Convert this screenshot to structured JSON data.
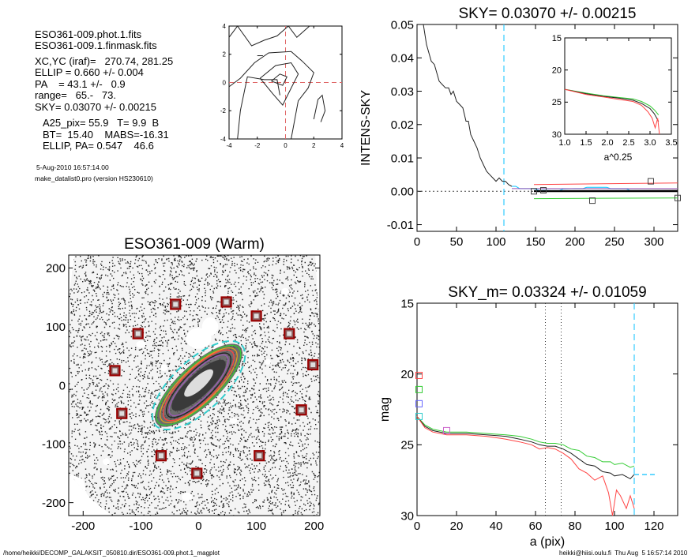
{
  "info": {
    "file1": "ESO361-009.phot.1.fits",
    "file2": "ESO361-009.1.finmask.fits",
    "xcyc": "XC,YC (iraf)=   270.74, 281.25",
    "ellip": "ELLIP = 0.660 +/- 0.004",
    "pa": "PA    = 43.1 +/-   0.9",
    "range": "range=   65.-   73.",
    "sky": "SKY= 0.03070 +/- 0.00215",
    "a25": "A25_pix= 55.9   T= 9.9  B",
    "bt": "BT=  15.40    MABS=-16.31",
    "ellip_pa": "ELLIP, PA= 0.547    46.6",
    "date": "5-Aug-2010 16:57:14.00",
    "program": "make_datalist0.pro (version HS230610)"
  },
  "footer": {
    "left": "/home/heikki/DECOMP_GALAKSIT_050810.dir/ESO361-009.phot.1_magplot",
    "right": "heikki@hiisi.oulu.fi  Thu Aug  5 16:57:14 2010"
  },
  "chart_data": [
    {
      "type": "contour",
      "id": "center-contour",
      "xlim": [
        -4,
        4
      ],
      "ylim": [
        -4,
        4
      ],
      "xticks": [
        "-4",
        "-2",
        "0",
        "2",
        "4"
      ],
      "yticks": [
        "-4",
        "-2",
        "0",
        "2",
        "4"
      ],
      "crosshair": [
        0,
        0
      ],
      "colors": {
        "lines": "#222222",
        "crosshair": "#e06666"
      }
    },
    {
      "type": "line",
      "id": "sky-profile",
      "title": "SKY= 0.03070 +/- 0.00215",
      "ylabel": "INTENS-SKY",
      "xlim": [
        0,
        330
      ],
      "ylim": [
        -0.012,
        0.05
      ],
      "xticks": [
        0,
        50,
        100,
        150,
        200,
        250,
        300
      ],
      "yticks": [
        -0.01,
        0.0,
        0.01,
        0.02,
        0.03,
        0.04,
        0.05
      ],
      "ytick_labels": [
        "-0.01",
        "0.00",
        "0.01",
        "0.02",
        "0.03",
        "0.04",
        "0.05"
      ],
      "dashed_x": 110,
      "series": [
        {
          "values": [
            [
              8,
              0.05
            ],
            [
              12,
              0.044
            ],
            [
              18,
              0.039
            ],
            [
              22,
              0.038
            ],
            [
              28,
              0.033
            ],
            [
              32,
              0.032
            ],
            [
              36,
              0.031
            ],
            [
              40,
              0.031
            ],
            [
              43,
              0.029
            ],
            [
              46,
              0.03
            ],
            [
              50,
              0.027
            ],
            [
              54,
              0.026
            ],
            [
              58,
              0.025
            ],
            [
              62,
              0.021
            ],
            [
              65,
              0.021
            ],
            [
              68,
              0.017
            ],
            [
              72,
              0.015
            ],
            [
              76,
              0.013
            ],
            [
              80,
              0.01
            ],
            [
              84,
              0.008
            ],
            [
              88,
              0.006
            ],
            [
              92,
              0.005
            ],
            [
              96,
              0.004
            ],
            [
              100,
              0.003
            ],
            [
              104,
              0.004
            ],
            [
              108,
              0.003
            ],
            [
              112,
              0.003
            ],
            [
              116,
              0.002
            ],
            [
              120,
              0.0015
            ]
          ],
          "color": "#222222"
        },
        {
          "values": [
            [
              120,
              0.0015
            ],
            [
              125,
              0.0015
            ],
            [
              130,
              0.0008
            ],
            [
              140,
              0.0008
            ],
            [
              148,
              0.0008
            ],
            [
              155,
              0.0002
            ],
            [
              160,
              0.0003
            ],
            [
              170,
              0.0002
            ],
            [
              180,
              0.0002
            ],
            [
              185,
              0.0007
            ],
            [
              200,
              0.0008
            ],
            [
              210,
              0.0008
            ],
            [
              215,
              0.0012
            ],
            [
              240,
              0.0012
            ],
            [
              245,
              0.0008
            ],
            [
              265,
              0.0008
            ],
            [
              270,
              0.0002
            ],
            [
              330,
              0.0002
            ]
          ],
          "color": "#00bfff"
        },
        {
          "values": [
            [
              120,
              0.0008
            ],
            [
              330,
              0.0008
            ]
          ],
          "color": "#9b59b6"
        },
        {
          "values": [
            [
              148,
              0.0002
            ],
            [
              330,
              0.0003
            ]
          ],
          "color": "#222222"
        },
        {
          "values": [
            [
              148,
              0.0
            ],
            [
              330,
              0.0
            ]
          ],
          "color": "#000000"
        },
        {
          "values": [
            [
              148,
              0.002
            ],
            [
              330,
              0.0025
            ]
          ],
          "color": "#ff4444"
        },
        {
          "values": [
            [
              148,
              -0.0022
            ],
            [
              330,
              -0.002
            ]
          ],
          "color": "#33cc33"
        }
      ],
      "markers": [
        [
          148,
          0.0
        ],
        [
          160,
          0.0003
        ],
        [
          222,
          -0.0028
        ],
        [
          296,
          0.003
        ],
        [
          330,
          -0.002
        ]
      ],
      "zero_line": 0.0
    },
    {
      "type": "line",
      "id": "sky-inset",
      "xlabel": "a^0.25",
      "xlim": [
        1.0,
        3.5
      ],
      "ylim": [
        30,
        15
      ],
      "xticks": [
        1.0,
        1.5,
        2.0,
        2.5,
        3.0,
        3.5
      ],
      "xtick_labels": [
        "1.0",
        "1.5",
        "2.0",
        "2.5",
        "3.0",
        "3.5"
      ],
      "yticks": [
        15,
        20,
        25,
        30
      ],
      "series": [
        {
          "values": [
            [
              1.0,
              23.0
            ],
            [
              1.5,
              23.6
            ],
            [
              1.9,
              24.0
            ],
            [
              2.3,
              24.3
            ],
            [
              2.6,
              24.5
            ],
            [
              2.8,
              24.9
            ],
            [
              3.0,
              25.6
            ],
            [
              3.1,
              26.2
            ],
            [
              3.2,
              27.0
            ]
          ],
          "color": "#33cc33"
        },
        {
          "values": [
            [
              1.0,
              23.0
            ],
            [
              1.5,
              23.7
            ],
            [
              1.9,
              24.1
            ],
            [
              2.3,
              24.4
            ],
            [
              2.6,
              24.7
            ],
            [
              2.8,
              25.2
            ],
            [
              3.0,
              26.0
            ],
            [
              3.1,
              26.8
            ],
            [
              3.2,
              28.0
            ]
          ],
          "color": "#222222"
        },
        {
          "values": [
            [
              1.0,
              23.0
            ],
            [
              1.5,
              23.8
            ],
            [
              1.9,
              24.2
            ],
            [
              2.3,
              24.6
            ],
            [
              2.6,
              24.9
            ],
            [
              2.8,
              25.5
            ],
            [
              2.95,
              26.5
            ],
            [
              3.05,
              27.5
            ],
            [
              3.12,
              29.0
            ],
            [
              3.18,
              27.5
            ],
            [
              3.22,
              30.0
            ]
          ],
          "color": "#ff4444"
        }
      ]
    },
    {
      "type": "scatter",
      "id": "galaxy-image",
      "title": "ESO361-009 (Warm)",
      "xlim": [
        -225,
        210
      ],
      "ylim": [
        -222,
        222
      ],
      "xticks": [
        -200,
        -100,
        0,
        100,
        200
      ],
      "yticks": [
        -200,
        -100,
        0,
        100,
        200
      ],
      "sky_boxes": [
        [
          -40,
          138
        ],
        [
          48,
          142
        ],
        [
          100,
          118
        ],
        [
          -105,
          88
        ],
        [
          157,
          88
        ],
        [
          -145,
          25
        ],
        [
          198,
          35
        ],
        [
          -133,
          -48
        ],
        [
          178,
          -42
        ],
        [
          -65,
          -120
        ],
        [
          105,
          -120
        ],
        [
          -3,
          -150
        ]
      ],
      "ellipses": [
        {
          "rx": 95,
          "ry": 33,
          "angle": -43,
          "color": "#33cc33"
        },
        {
          "rx": 88,
          "ry": 30,
          "angle": -44,
          "color": "#e0a020"
        },
        {
          "rx": 82,
          "ry": 28,
          "angle": -45,
          "color": "#ff4444"
        },
        {
          "rx": 75,
          "ry": 25,
          "angle": -45,
          "color": "#222222"
        },
        {
          "rx": 70,
          "ry": 22,
          "angle": -46,
          "color": "#9b59b6"
        }
      ],
      "sky_ellipse": {
        "rx": 102,
        "ry": 44,
        "angle": -43,
        "color": "#33cccc"
      },
      "colors": {
        "box_outline": "#990000"
      }
    },
    {
      "type": "line",
      "id": "mag-profile",
      "title": "SKY_m=  0.03324 +/- 0.01059",
      "xlabel": "a (pix)",
      "ylabel": "mag",
      "xlim": [
        0,
        132
      ],
      "ylim": [
        30,
        15
      ],
      "xticks": [
        0,
        20,
        40,
        60,
        80,
        100,
        120
      ],
      "yticks": [
        15,
        20,
        25,
        30
      ],
      "dotted_x": [
        65,
        73
      ],
      "dashed_x": 110,
      "series": [
        {
          "values": [
            [
              0,
              23.0
            ],
            [
              4,
              23.6
            ],
            [
              8,
              23.9
            ],
            [
              15,
              24.1
            ],
            [
              25,
              24.1
            ],
            [
              35,
              24.2
            ],
            [
              45,
              24.3
            ],
            [
              52,
              24.4
            ],
            [
              58,
              24.6
            ],
            [
              62,
              24.8
            ],
            [
              66,
              24.9
            ],
            [
              70,
              24.9
            ],
            [
              74,
              25.0
            ],
            [
              78,
              25.3
            ],
            [
              82,
              25.4
            ],
            [
              86,
              25.8
            ],
            [
              90,
              25.9
            ],
            [
              94,
              26.2
            ],
            [
              98,
              26.2
            ],
            [
              100,
              26.4
            ],
            [
              104,
              26.3
            ],
            [
              108,
              26.6
            ],
            [
              110,
              26.5
            ]
          ],
          "color": "#33cc33"
        },
        {
          "values": [
            [
              0,
              23.0
            ],
            [
              4,
              23.7
            ],
            [
              8,
              24.0
            ],
            [
              15,
              24.2
            ],
            [
              25,
              24.2
            ],
            [
              35,
              24.3
            ],
            [
              45,
              24.4
            ],
            [
              52,
              24.6
            ],
            [
              58,
              24.8
            ],
            [
              62,
              25.0
            ],
            [
              66,
              25.1
            ],
            [
              70,
              25.1
            ],
            [
              74,
              25.3
            ],
            [
              78,
              25.6
            ],
            [
              82,
              26.0
            ],
            [
              86,
              26.4
            ],
            [
              90,
              26.5
            ],
            [
              94,
              26.9
            ],
            [
              98,
              27.0
            ],
            [
              100,
              27.2
            ],
            [
              104,
              27.1
            ],
            [
              108,
              27.4
            ],
            [
              110,
              27.1
            ]
          ],
          "color": "#222222"
        },
        {
          "values": [
            [
              0,
              23.0
            ],
            [
              4,
              23.8
            ],
            [
              8,
              24.1
            ],
            [
              15,
              24.3
            ],
            [
              25,
              24.3
            ],
            [
              35,
              24.4
            ],
            [
              45,
              24.6
            ],
            [
              52,
              24.8
            ],
            [
              58,
              25.0
            ],
            [
              62,
              25.3
            ],
            [
              66,
              25.2
            ],
            [
              70,
              25.3
            ],
            [
              74,
              25.6
            ],
            [
              78,
              26.0
            ],
            [
              82,
              26.7
            ],
            [
              86,
              27.0
            ],
            [
              90,
              27.5
            ],
            [
              94,
              27.2
            ],
            [
              97,
              28.4
            ],
            [
              99,
              30.0
            ],
            [
              101,
              28.2
            ],
            [
              103,
              28.6
            ],
            [
              106,
              29.5
            ],
            [
              108,
              28.6
            ],
            [
              110,
              29.5
            ]
          ],
          "color": "#ff4444"
        }
      ],
      "sky_segment": [
        [
          110,
          27.1
        ],
        [
          121,
          27.1
        ]
      ],
      "markers": [
        {
          "x": 1,
          "y": 20.1,
          "color": "#ff4444"
        },
        {
          "x": 1,
          "y": 21.1,
          "color": "#33cc33"
        },
        {
          "x": 1,
          "y": 22.1,
          "color": "#6666ff"
        },
        {
          "x": 1,
          "y": 23.0,
          "color": "#33cccc"
        },
        {
          "x": 15,
          "y": 24.0,
          "color": "#cc66cc"
        }
      ],
      "colors": {
        "sky": "#33ccff"
      }
    }
  ]
}
